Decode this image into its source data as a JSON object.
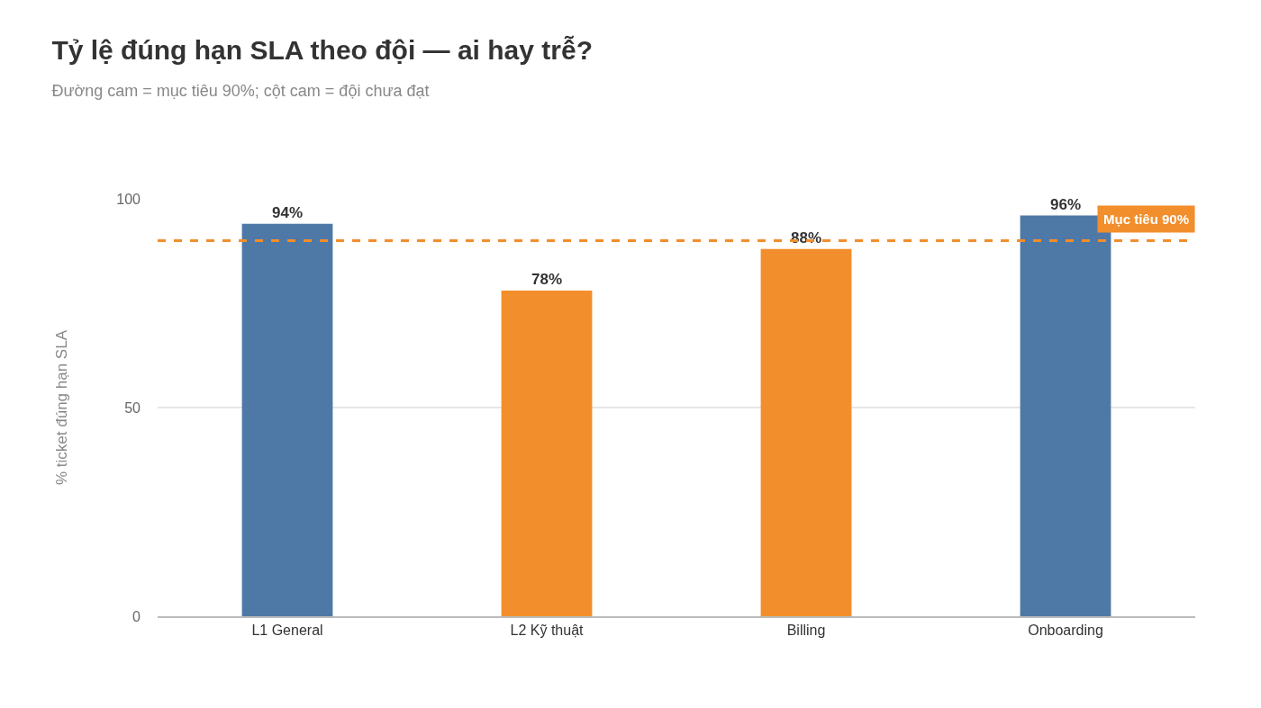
{
  "chart_data": {
    "type": "bar",
    "title": "Tỷ lệ đúng hạn SLA theo đội — ai hay trễ?",
    "subtitle": "Đường cam = mục tiêu 90%; cột cam = đội chưa đạt",
    "ylabel": "% ticket đúng hạn SLA",
    "categories": [
      "L1 General",
      "L2 Kỹ thuật",
      "Billing",
      "Onboarding"
    ],
    "values": [
      94,
      78,
      88,
      96
    ],
    "colors": [
      "#4e79a7",
      "#f28e2b",
      "#f28e2b",
      "#4e79a7"
    ],
    "value_labels": [
      "94%",
      "78%",
      "88%",
      "96%"
    ],
    "ylim": [
      0,
      100
    ],
    "yticks": [
      0,
      50,
      100
    ],
    "grid": "y",
    "ref_lines": [
      {
        "axis": "y",
        "value": 90,
        "label": "Mục tiêu 90%",
        "color": "#f28e2b",
        "line_style": "dashed"
      }
    ]
  }
}
